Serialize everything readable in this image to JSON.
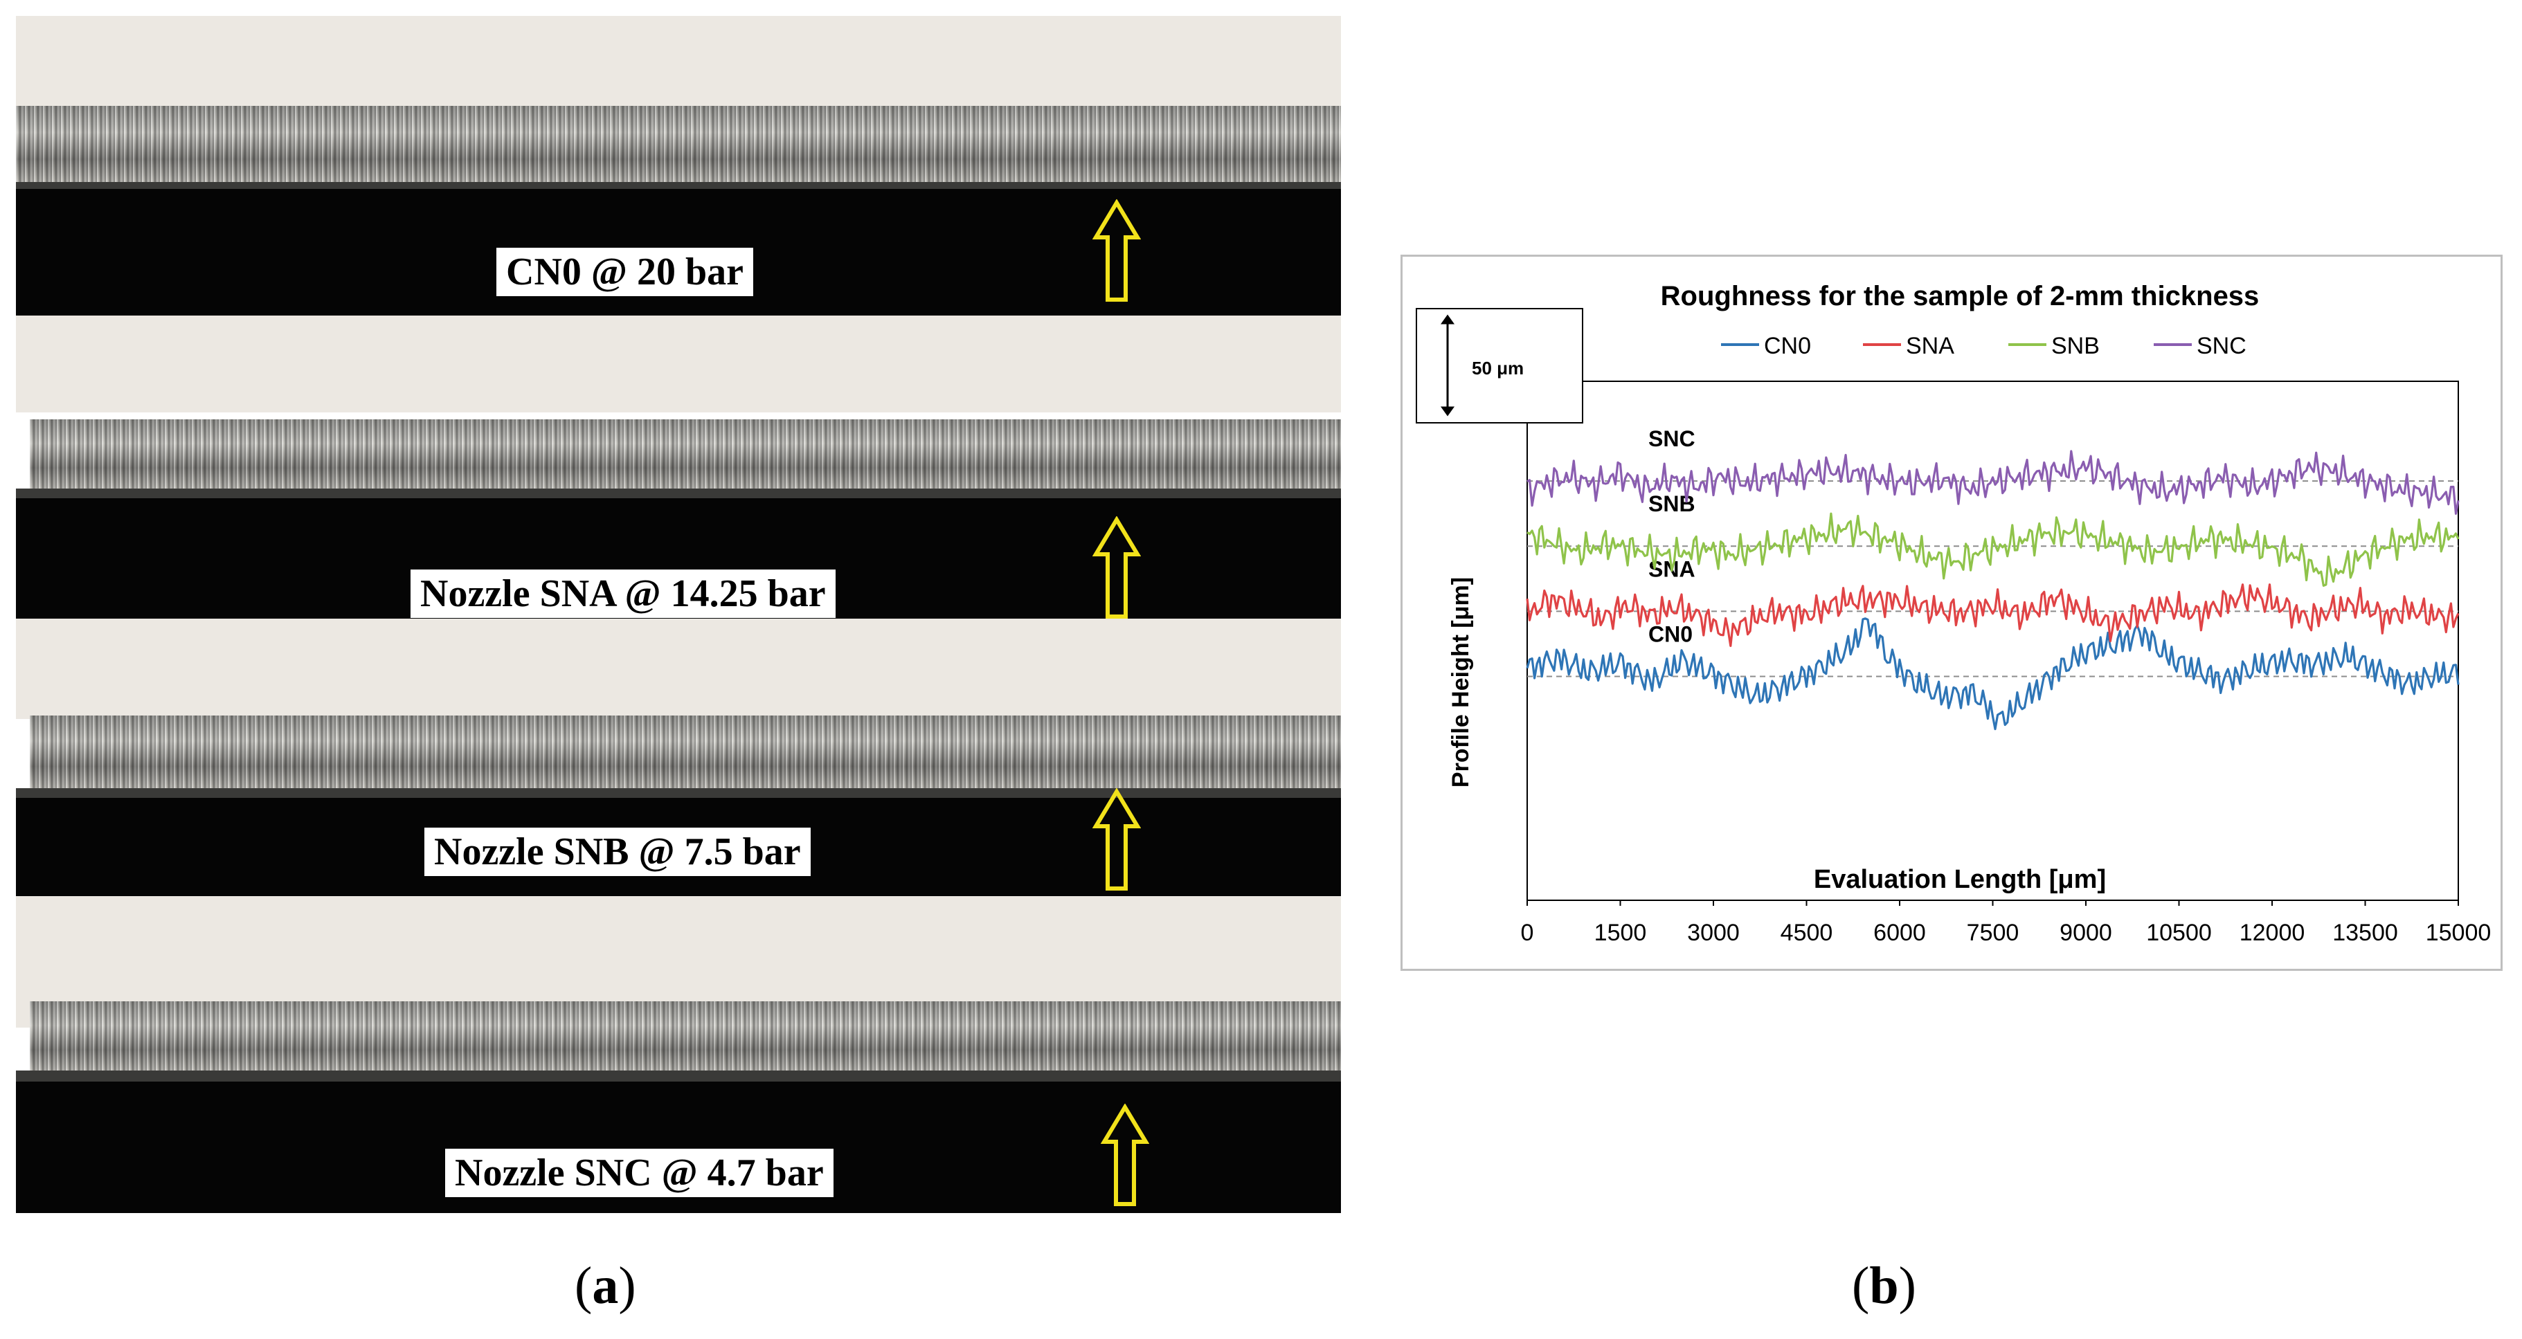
{
  "panel_a": {
    "caption_open": "(",
    "caption_letter": "a",
    "caption_close": ")",
    "samples": [
      {
        "label": "CN0 @ 20 bar"
      },
      {
        "label": "Nozzle SNA @ 14.25 bar"
      },
      {
        "label": "Nozzle SNB @ 7.5 bar"
      },
      {
        "label": "Nozzle SNC @ 4.7 bar"
      }
    ],
    "arrow_color": "#f2e21b",
    "arrow_icon": "up-arrow-icon"
  },
  "panel_b": {
    "caption_open": "(",
    "caption_letter": "b",
    "caption_close": ")",
    "scale_bar_label": "50 μm"
  },
  "chart_data": {
    "type": "line",
    "title": "Roughness for the sample of 2-mm thickness",
    "xlabel": "Evaluation  Length [μm]",
    "ylabel": "Profile Height [μm]",
    "xlim": [
      0,
      15000
    ],
    "x_ticks": [
      0,
      1500,
      3000,
      4500,
      6000,
      7500,
      9000,
      10500,
      12000,
      13500,
      15000
    ],
    "ylim": [
      -110,
      145
    ],
    "scale_bar_um": 50,
    "grid": false,
    "legend_position": "top",
    "series": [
      {
        "name": "CN0",
        "color": "#2e75b6",
        "offset": 0,
        "profile": [
          [
            0,
            4
          ],
          [
            500,
            9
          ],
          [
            1000,
            2
          ],
          [
            1500,
            7
          ],
          [
            2000,
            -3
          ],
          [
            2500,
            8
          ],
          [
            3000,
            1
          ],
          [
            3300,
            -4
          ],
          [
            3700,
            -10
          ],
          [
            4200,
            -4
          ],
          [
            4700,
            4
          ],
          [
            5200,
            14
          ],
          [
            5500,
            28
          ],
          [
            5800,
            10
          ],
          [
            6200,
            -2
          ],
          [
            6700,
            -10
          ],
          [
            7200,
            -8
          ],
          [
            7600,
            -22
          ],
          [
            8000,
            -12
          ],
          [
            8500,
            2
          ],
          [
            9000,
            12
          ],
          [
            9500,
            16
          ],
          [
            9900,
            22
          ],
          [
            10300,
            10
          ],
          [
            10700,
            4
          ],
          [
            11200,
            -2
          ],
          [
            11700,
            4
          ],
          [
            12200,
            8
          ],
          [
            12700,
            6
          ],
          [
            13200,
            10
          ],
          [
            13700,
            3
          ],
          [
            14200,
            -4
          ],
          [
            14600,
            0
          ],
          [
            15000,
            2
          ]
        ]
      },
      {
        "name": "SNA",
        "color": "#e04345",
        "offset": 32,
        "profile": [
          [
            0,
            -1
          ],
          [
            400,
            6
          ],
          [
            800,
            2
          ],
          [
            1200,
            -4
          ],
          [
            1600,
            3
          ],
          [
            2000,
            -2
          ],
          [
            2400,
            2
          ],
          [
            2800,
            -3
          ],
          [
            3000,
            -6
          ],
          [
            3200,
            -11
          ],
          [
            3600,
            -5
          ],
          [
            4000,
            0
          ],
          [
            4500,
            -2
          ],
          [
            5000,
            4
          ],
          [
            5500,
            6
          ],
          [
            6000,
            5
          ],
          [
            6500,
            1
          ],
          [
            7000,
            -1
          ],
          [
            7500,
            3
          ],
          [
            8000,
            -2
          ],
          [
            8500,
            7
          ],
          [
            9000,
            -1
          ],
          [
            9400,
            -7
          ],
          [
            9800,
            -2
          ],
          [
            10300,
            3
          ],
          [
            10800,
            -2
          ],
          [
            11300,
            5
          ],
          [
            11700,
            8
          ],
          [
            12200,
            2
          ],
          [
            12600,
            -4
          ],
          [
            13000,
            1
          ],
          [
            13400,
            4
          ],
          [
            13800,
            -3
          ],
          [
            14200,
            1
          ],
          [
            14600,
            -2
          ],
          [
            15000,
            -4
          ]
        ]
      },
      {
        "name": "SNB",
        "color": "#8fc34a",
        "offset": 64,
        "profile": [
          [
            0,
            6
          ],
          [
            400,
            2
          ],
          [
            800,
            -3
          ],
          [
            1300,
            1
          ],
          [
            1800,
            -2
          ],
          [
            2300,
            -5
          ],
          [
            2800,
            -1
          ],
          [
            3300,
            -4
          ],
          [
            3800,
            -1
          ],
          [
            4300,
            3
          ],
          [
            4800,
            6
          ],
          [
            5200,
            9
          ],
          [
            5600,
            5
          ],
          [
            6000,
            1
          ],
          [
            6400,
            -5
          ],
          [
            6900,
            -8
          ],
          [
            7300,
            -3
          ],
          [
            7800,
            1
          ],
          [
            8300,
            6
          ],
          [
            8800,
            7
          ],
          [
            9200,
            4
          ],
          [
            9600,
            1
          ],
          [
            10000,
            -3
          ],
          [
            10500,
            -1
          ],
          [
            11000,
            4
          ],
          [
            11500,
            2
          ],
          [
            12000,
            -1
          ],
          [
            12500,
            -6
          ],
          [
            12800,
            -15
          ],
          [
            13100,
            -12
          ],
          [
            13500,
            -4
          ],
          [
            14000,
            2
          ],
          [
            14500,
            5
          ],
          [
            15000,
            4
          ]
        ]
      },
      {
        "name": "SNC",
        "color": "#8a5db0",
        "offset": 96,
        "profile": [
          [
            0,
            -5
          ],
          [
            300,
            -1
          ],
          [
            700,
            2
          ],
          [
            1100,
            -2
          ],
          [
            1500,
            4
          ],
          [
            1900,
            -4
          ],
          [
            2300,
            1
          ],
          [
            2700,
            -3
          ],
          [
            3100,
            2
          ],
          [
            3500,
            -1
          ],
          [
            3900,
            1
          ],
          [
            4400,
            3
          ],
          [
            4800,
            5
          ],
          [
            5300,
            4
          ],
          [
            5700,
            1
          ],
          [
            6200,
            -1
          ],
          [
            6700,
            1
          ],
          [
            7100,
            -4
          ],
          [
            7600,
            0
          ],
          [
            8100,
            3
          ],
          [
            8600,
            5
          ],
          [
            9000,
            7
          ],
          [
            9400,
            3
          ],
          [
            9800,
            -2
          ],
          [
            10300,
            -5
          ],
          [
            10800,
            -2
          ],
          [
            11200,
            2
          ],
          [
            11700,
            -3
          ],
          [
            12200,
            2
          ],
          [
            12600,
            7
          ],
          [
            13000,
            5
          ],
          [
            13500,
            0
          ],
          [
            14000,
            -4
          ],
          [
            14500,
            -6
          ],
          [
            15000,
            -8
          ]
        ]
      }
    ]
  }
}
